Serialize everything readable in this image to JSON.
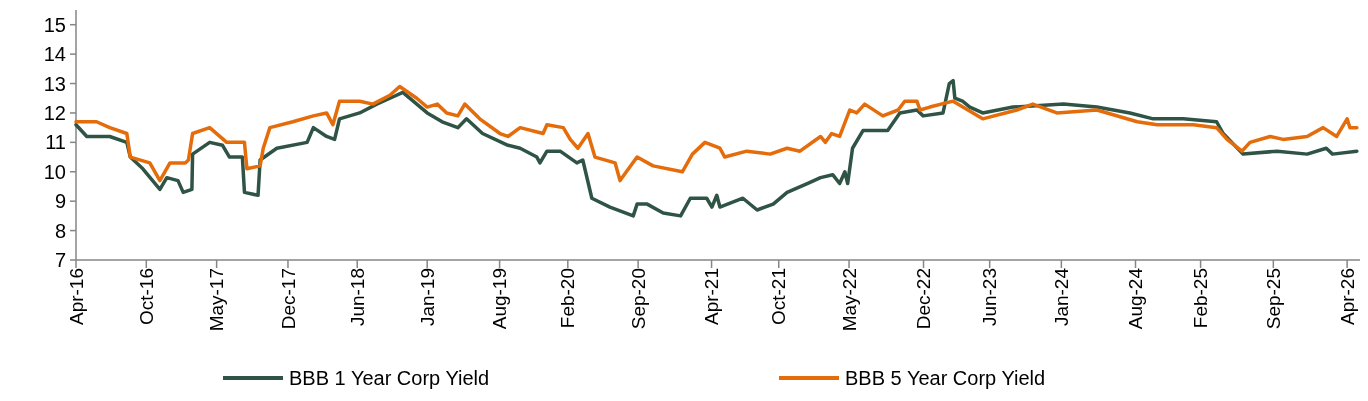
{
  "chart_data": {
    "type": "line",
    "ylim": [
      7,
      15.5
    ],
    "yticks": [
      7,
      8,
      9,
      10,
      11,
      12,
      13,
      14,
      15
    ],
    "xlim": [
      "2016-04-01",
      "2026-05-08"
    ],
    "xticks": [
      {
        "value": "2016-04-01",
        "label": "Apr-16"
      },
      {
        "value": "2016-10-20",
        "label": "Oct-16"
      },
      {
        "value": "2017-05-10",
        "label": "May-17"
      },
      {
        "value": "2017-12-01",
        "label": "Dec-17"
      },
      {
        "value": "2018-06-18",
        "label": "Jun-18"
      },
      {
        "value": "2019-01-05",
        "label": "Jan-19"
      },
      {
        "value": "2019-08-01",
        "label": "Aug-19"
      },
      {
        "value": "2020-02-13",
        "label": "Feb-20"
      },
      {
        "value": "2020-09-02",
        "label": "Sep-20"
      },
      {
        "value": "2021-04-01",
        "label": "Apr-21"
      },
      {
        "value": "2021-10-11",
        "label": "Oct-21"
      },
      {
        "value": "2022-05-01",
        "label": "May-22"
      },
      {
        "value": "2022-12-01",
        "label": "Dec-22"
      },
      {
        "value": "2023-06-09",
        "label": "Jun-23"
      },
      {
        "value": "2024-01-01",
        "label": "Jan-24"
      },
      {
        "value": "2024-08-01",
        "label": "Aug-24"
      },
      {
        "value": "2025-02-04",
        "label": "Feb-25"
      },
      {
        "value": "2025-09-01",
        "label": "Sep-25"
      },
      {
        "value": "2026-04-01",
        "label": "Apr-26"
      }
    ],
    "grid": false,
    "legend": "bottom",
    "marker": "none",
    "line_style": "solid",
    "series": [
      {
        "name": "BBB 1 Year Corp Yield",
        "color": "#2f5446",
        "x": [
          "2016-04-01",
          "2016-05-02",
          "2016-07-07",
          "2016-08-25",
          "2016-09-04",
          "2016-10-10",
          "2016-11-28",
          "2016-12-18",
          "2017-01-19",
          "2017-02-03",
          "2017-02-28",
          "2017-03-02",
          "2017-04-20",
          "2017-05-27",
          "2017-06-16",
          "2017-07-23",
          "2017-07-29",
          "2017-09-06",
          "2017-09-12",
          "2017-10-30",
          "2018-01-25",
          "2018-02-12",
          "2018-03-22",
          "2018-04-14",
          "2018-04-28",
          "2018-06-25",
          "2018-08-13",
          "2018-09-20",
          "2018-10-27",
          "2019-01-05",
          "2019-02-17",
          "2019-04-03",
          "2019-04-28",
          "2019-06-13",
          "2019-08-25",
          "2019-09-29",
          "2019-11-16",
          "2019-11-25",
          "2019-12-15",
          "2020-01-22",
          "2020-03-10",
          "2020-03-27",
          "2020-04-22",
          "2020-06-13",
          "2020-08-19",
          "2020-08-30",
          "2020-09-28",
          "2020-11-13",
          "2021-01-02",
          "2021-01-30",
          "2021-03-18",
          "2021-04-02",
          "2021-04-16",
          "2021-04-25",
          "2021-06-30",
          "2021-08-10",
          "2021-09-25",
          "2021-11-04",
          "2022-01-01",
          "2022-02-08",
          "2022-03-15",
          "2022-04-04",
          "2022-04-19",
          "2022-04-27",
          "2022-05-11",
          "2022-06-10",
          "2022-08-20",
          "2022-09-24",
          "2022-11-12",
          "2022-11-30",
          "2023-01-26",
          "2023-02-13",
          "2023-02-24",
          "2023-03-01",
          "2023-03-23",
          "2023-04-13",
          "2023-05-20",
          "2023-08-15",
          "2024-01-07",
          "2024-04-12",
          "2024-07-16",
          "2024-09-21",
          "2024-12-16",
          "2025-03-22",
          "2025-04-10",
          "2025-06-06",
          "2025-09-12",
          "2025-12-07",
          "2026-01-31",
          "2026-02-18",
          "2026-04-29"
        ],
        "values": [
          11.6,
          11.2,
          11.2,
          11.0,
          10.5,
          10.1,
          9.4,
          9.8,
          9.7,
          9.3,
          9.4,
          10.6,
          11.0,
          10.9,
          10.5,
          10.5,
          9.3,
          9.2,
          10.4,
          10.8,
          11.0,
          11.5,
          11.2,
          11.1,
          11.8,
          12.0,
          12.3,
          12.5,
          12.7,
          12.0,
          11.7,
          11.5,
          11.8,
          11.3,
          10.9,
          10.8,
          10.5,
          10.3,
          10.7,
          10.7,
          10.3,
          10.4,
          9.1,
          8.8,
          8.5,
          8.9,
          8.9,
          8.6,
          8.5,
          9.1,
          9.1,
          8.8,
          9.2,
          8.8,
          9.1,
          8.7,
          8.9,
          9.3,
          9.6,
          9.8,
          9.9,
          9.6,
          10.0,
          9.6,
          10.8,
          11.4,
          11.4,
          12.0,
          12.1,
          11.9,
          12.0,
          13.0,
          13.1,
          12.5,
          12.4,
          12.2,
          12.0,
          12.2,
          12.3,
          12.2,
          12.0,
          11.8,
          11.8,
          11.7,
          11.3,
          10.6,
          10.7,
          10.6,
          10.8,
          10.6,
          10.7
        ]
      },
      {
        "name": "BBB 5 Year Corp Yield",
        "color": "#e46c0a",
        "x": [
          "2016-04-01",
          "2016-05-30",
          "2016-07-07",
          "2016-08-25",
          "2016-09-04",
          "2016-10-30",
          "2016-11-28",
          "2016-12-27",
          "2017-02-09",
          "2017-02-18",
          "2017-03-02",
          "2017-04-20",
          "2017-06-08",
          "2017-07-29",
          "2017-08-05",
          "2017-09-12",
          "2017-09-21",
          "2017-10-10",
          "2017-12-15",
          "2018-02-12",
          "2018-03-22",
          "2018-04-09",
          "2018-04-28",
          "2018-06-25",
          "2018-08-02",
          "2018-09-20",
          "2018-10-18",
          "2018-12-06",
          "2019-01-05",
          "2019-02-03",
          "2019-03-02",
          "2019-04-03",
          "2019-04-23",
          "2019-06-05",
          "2019-08-02",
          "2019-08-25",
          "2019-09-29",
          "2019-12-04",
          "2019-12-15",
          "2020-01-31",
          "2020-02-20",
          "2020-03-13",
          "2020-04-11",
          "2020-05-01",
          "2020-06-28",
          "2020-07-12",
          "2020-08-30",
          "2020-10-15",
          "2021-01-07",
          "2021-02-05",
          "2021-03-13",
          "2021-04-25",
          "2021-05-09",
          "2021-07-11",
          "2021-09-16",
          "2021-11-04",
          "2021-12-11",
          "2022-02-08",
          "2022-02-22",
          "2022-03-12",
          "2022-04-04",
          "2022-05-03",
          "2022-05-23",
          "2022-06-15",
          "2022-08-06",
          "2022-09-19",
          "2022-10-08",
          "2022-11-12",
          "2022-11-21",
          "2022-12-19",
          "2023-02-24",
          "2023-05-20",
          "2023-08-26",
          "2023-10-11",
          "2023-12-19",
          "2024-04-12",
          "2024-08-06",
          "2024-10-02",
          "2025-01-14",
          "2025-03-22",
          "2025-04-21",
          "2025-06-03",
          "2025-06-26",
          "2025-08-23",
          "2025-09-29",
          "2025-12-07",
          "2026-01-22",
          "2026-03-02",
          "2026-04-01",
          "2026-04-09",
          "2026-04-29"
        ],
        "values": [
          11.7,
          11.7,
          11.5,
          11.3,
          10.5,
          10.3,
          9.7,
          10.3,
          10.3,
          10.4,
          11.3,
          11.5,
          11.0,
          11.0,
          10.1,
          10.2,
          10.8,
          11.5,
          11.7,
          11.9,
          12.0,
          11.6,
          12.4,
          12.4,
          12.3,
          12.6,
          12.9,
          12.5,
          12.2,
          12.3,
          12.0,
          11.9,
          12.3,
          11.8,
          11.3,
          11.2,
          11.5,
          11.3,
          11.6,
          11.5,
          11.1,
          10.8,
          11.3,
          10.5,
          10.3,
          9.7,
          10.5,
          10.2,
          10.0,
          10.6,
          11.0,
          10.8,
          10.5,
          10.7,
          10.6,
          10.8,
          10.7,
          11.2,
          11.0,
          11.3,
          11.2,
          12.1,
          12.0,
          12.3,
          11.9,
          12.1,
          12.4,
          12.4,
          12.1,
          12.2,
          12.4,
          11.8,
          12.1,
          12.3,
          12.0,
          12.1,
          11.7,
          11.6,
          11.6,
          11.5,
          11.1,
          10.7,
          11.0,
          11.2,
          11.1,
          11.2,
          11.5,
          11.2,
          11.8,
          11.5,
          11.5
        ]
      }
    ]
  }
}
